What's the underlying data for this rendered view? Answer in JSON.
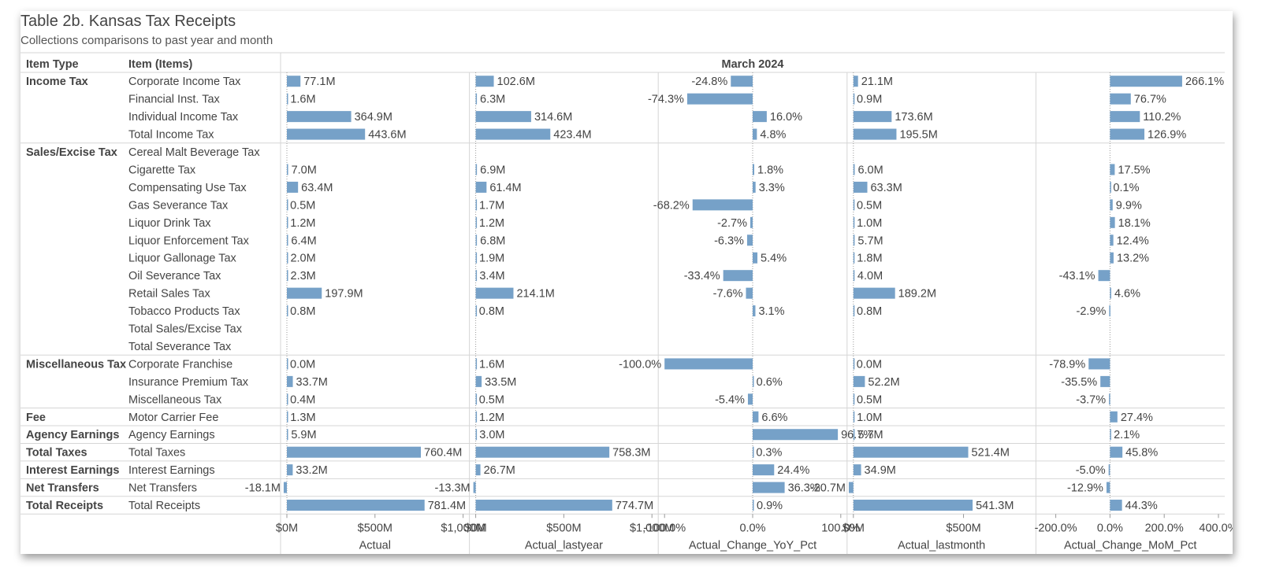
{
  "title": "Table 2b. Kansas Tax Receipts",
  "subtitle": "Collections comparisons to past year and month",
  "header": {
    "item_type": "Item Type",
    "item": "Item (Items)",
    "period": "March 2024"
  },
  "colors": {
    "bar": "#76a1c8",
    "grid": "#d6d6d6",
    "text": "#444444"
  },
  "chart_data": {
    "type": "bar",
    "columns": [
      {
        "key": "actual",
        "name": "Actual",
        "format": "money",
        "domain": [
          0,
          1000
        ],
        "ticks": [
          {
            "value": 0,
            "label": "$0M"
          },
          {
            "value": 500,
            "label": "$500M"
          },
          {
            "value": 1000,
            "label": "$1,000M"
          }
        ]
      },
      {
        "key": "lastyear",
        "name": "Actual_lastyear",
        "format": "money",
        "domain": [
          0,
          1000
        ],
        "ticks": [
          {
            "value": 0,
            "label": "$0M"
          },
          {
            "value": 500,
            "label": "$500M"
          },
          {
            "value": 1000,
            "label": "$1,000M"
          }
        ]
      },
      {
        "key": "yoy",
        "name": "Actual_Change_YoY_Pct",
        "format": "pct",
        "domain": [
          -100,
          100
        ],
        "ticks": [
          {
            "value": -100,
            "label": "-100.0%"
          },
          {
            "value": 0,
            "label": "0.0%"
          },
          {
            "value": 100,
            "label": "100.0%"
          }
        ]
      },
      {
        "key": "lastmonth",
        "name": "Actual_lastmonth",
        "format": "money",
        "domain": [
          0,
          800
        ],
        "ticks": [
          {
            "value": 0,
            "label": "$0M"
          },
          {
            "value": 500,
            "label": "$500M"
          }
        ]
      },
      {
        "key": "mom",
        "name": "Actual_Change_MoM_Pct",
        "format": "pct",
        "domain": [
          -250,
          400
        ],
        "ticks": [
          {
            "value": -200,
            "label": "-200.0%"
          },
          {
            "value": 0,
            "label": "0.0%"
          },
          {
            "value": 200,
            "label": "200.0%"
          },
          {
            "value": 400,
            "label": "400.0%"
          }
        ]
      }
    ],
    "groups": [
      {
        "type": "Income Tax",
        "rows": [
          {
            "item": "Corporate Income Tax",
            "actual": 77.1,
            "lastyear": 102.6,
            "yoy": -24.8,
            "lastmonth": 21.1,
            "mom": 266.1
          },
          {
            "item": "Financial Inst. Tax",
            "actual": 1.6,
            "lastyear": 6.3,
            "yoy": -74.3,
            "lastmonth": 0.9,
            "mom": 76.7
          },
          {
            "item": "Individual Income Tax",
            "actual": 364.9,
            "lastyear": 314.6,
            "yoy": 16.0,
            "lastmonth": 173.6,
            "mom": 110.2
          },
          {
            "item": "Total Income Tax",
            "actual": 443.6,
            "lastyear": 423.4,
            "yoy": 4.8,
            "lastmonth": 195.5,
            "mom": 126.9
          }
        ]
      },
      {
        "type": "Sales/Excise Tax",
        "rows": [
          {
            "item": "Cereal Malt Beverage Tax",
            "actual": null,
            "lastyear": null,
            "yoy": null,
            "lastmonth": null,
            "mom": null
          },
          {
            "item": "Cigarette Tax",
            "actual": 7.0,
            "lastyear": 6.9,
            "yoy": 1.8,
            "lastmonth": 6.0,
            "mom": 17.5
          },
          {
            "item": "Compensating Use Tax",
            "actual": 63.4,
            "lastyear": 61.4,
            "yoy": 3.3,
            "lastmonth": 63.3,
            "mom": 0.1
          },
          {
            "item": "Gas Severance Tax",
            "actual": 0.5,
            "lastyear": 1.7,
            "yoy": -68.2,
            "lastmonth": 0.5,
            "mom": 9.9
          },
          {
            "item": "Liquor Drink Tax",
            "actual": 1.2,
            "lastyear": 1.2,
            "yoy": -2.7,
            "lastmonth": 1.0,
            "mom": 18.1
          },
          {
            "item": "Liquor Enforcement Tax",
            "actual": 6.4,
            "lastyear": 6.8,
            "yoy": -6.3,
            "lastmonth": 5.7,
            "mom": 12.4
          },
          {
            "item": "Liquor Gallonage Tax",
            "actual": 2.0,
            "lastyear": 1.9,
            "yoy": 5.4,
            "lastmonth": 1.8,
            "mom": 13.2
          },
          {
            "item": "Oil Severance Tax",
            "actual": 2.3,
            "lastyear": 3.4,
            "yoy": -33.4,
            "lastmonth": 4.0,
            "mom": -43.1
          },
          {
            "item": "Retail Sales Tax",
            "actual": 197.9,
            "lastyear": 214.1,
            "yoy": -7.6,
            "lastmonth": 189.2,
            "mom": 4.6
          },
          {
            "item": "Tobacco Products Tax",
            "actual": 0.8,
            "lastyear": 0.8,
            "yoy": 3.1,
            "lastmonth": 0.8,
            "mom": -2.9
          },
          {
            "item": "Total Sales/Excise Tax",
            "actual": null,
            "lastyear": null,
            "yoy": null,
            "lastmonth": null,
            "mom": null
          },
          {
            "item": "Total Severance Tax",
            "actual": null,
            "lastyear": null,
            "yoy": null,
            "lastmonth": null,
            "mom": null
          }
        ]
      },
      {
        "type": "Miscellaneous Tax",
        "rows": [
          {
            "item": "Corporate Franchise",
            "actual": 0.0,
            "lastyear": 1.6,
            "yoy": -100.0,
            "lastmonth": 0.0,
            "mom": -78.9
          },
          {
            "item": "Insurance Premium Tax",
            "actual": 33.7,
            "lastyear": 33.5,
            "yoy": 0.6,
            "lastmonth": 52.2,
            "mom": -35.5
          },
          {
            "item": "Miscellaneous Tax",
            "actual": 0.4,
            "lastyear": 0.5,
            "yoy": -5.4,
            "lastmonth": 0.5,
            "mom": -3.7
          }
        ]
      },
      {
        "type": "Fee",
        "rows": [
          {
            "item": "Motor Carrier Fee",
            "actual": 1.3,
            "lastyear": 1.2,
            "yoy": 6.6,
            "lastmonth": 1.0,
            "mom": 27.4
          }
        ]
      },
      {
        "type": "Agency Earnings",
        "rows": [
          {
            "item": "Agency Earnings",
            "actual": 5.9,
            "lastyear": 3.0,
            "yoy": 96.7,
            "lastmonth": 5.7,
            "mom": 2.1
          }
        ]
      },
      {
        "type": "Total Taxes",
        "rows": [
          {
            "item": "Total Taxes",
            "actual": 760.4,
            "lastyear": 758.3,
            "yoy": 0.3,
            "lastmonth": 521.4,
            "mom": 45.8
          }
        ]
      },
      {
        "type": "Interest Earnings",
        "rows": [
          {
            "item": "Interest Earnings",
            "actual": 33.2,
            "lastyear": 26.7,
            "yoy": 24.4,
            "lastmonth": 34.9,
            "mom": -5.0
          }
        ]
      },
      {
        "type": "Net Transfers",
        "rows": [
          {
            "item": "Net Transfers",
            "actual": -18.1,
            "lastyear": -13.3,
            "yoy": 36.3,
            "lastmonth": -20.7,
            "mom": -12.9
          }
        ]
      },
      {
        "type": "Total Receipts",
        "rows": [
          {
            "item": "Total Receipts",
            "actual": 781.4,
            "lastyear": 774.7,
            "yoy": 0.9,
            "lastmonth": 541.3,
            "mom": 44.3
          }
        ]
      }
    ]
  }
}
